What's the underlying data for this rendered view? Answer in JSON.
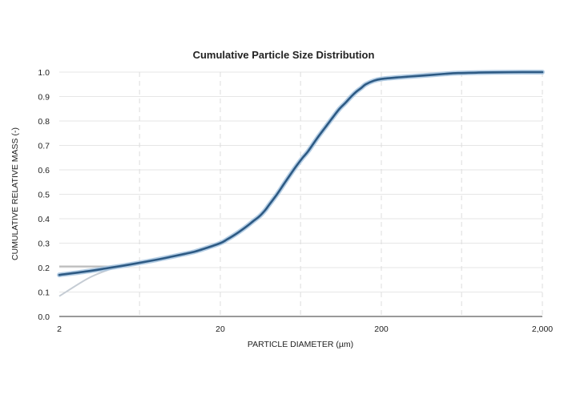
{
  "chart_data": {
    "type": "line",
    "title": "Cumulative Particle Size Distribution",
    "xlabel": "PARTICLE DIAMETER (µm)",
    "ylabel": "CUMULATIVE RELATIVE MASS (-)",
    "x_scale": "log",
    "xlim": [
      2,
      2000
    ],
    "ylim": [
      0,
      1.0
    ],
    "x_ticks": [
      2,
      20,
      200,
      2000
    ],
    "x_tick_labels": [
      "2",
      "20",
      "200",
      "2,000"
    ],
    "x_minor_gridlines": [
      6.3,
      63,
      630
    ],
    "y_ticks": [
      0.0,
      0.1,
      0.2,
      0.3,
      0.4,
      0.5,
      0.6,
      0.7,
      0.8,
      0.9,
      1.0
    ],
    "y_tick_labels": [
      "0.0",
      "0.1",
      "0.2",
      "0.3",
      "0.4",
      "0.5",
      "0.6",
      "0.7",
      "0.8",
      "0.9",
      "1.0"
    ],
    "grid": true,
    "colors": {
      "main": "#2d5a84",
      "band": "#a8c6e0",
      "flat_extrapolation": "#bbbbbb",
      "sloped_extrapolation": "#c5ccd4"
    },
    "series": [
      {
        "role": "main",
        "x": [
          2,
          3,
          4,
          5,
          6,
          8,
          10,
          12,
          14,
          16,
          20,
          22,
          24,
          26,
          28,
          30,
          32,
          35,
          38,
          40,
          45,
          50,
          55,
          60,
          65,
          70,
          80,
          90,
          100,
          110,
          120,
          130,
          140,
          150,
          160,
          180,
          200,
          250,
          300,
          400,
          500,
          600,
          800,
          1000,
          1500,
          2000
        ],
        "y": [
          0.17,
          0.185,
          0.198,
          0.208,
          0.217,
          0.232,
          0.245,
          0.256,
          0.266,
          0.278,
          0.3,
          0.315,
          0.33,
          0.345,
          0.36,
          0.375,
          0.39,
          0.41,
          0.435,
          0.455,
          0.5,
          0.545,
          0.585,
          0.62,
          0.65,
          0.675,
          0.73,
          0.775,
          0.815,
          0.85,
          0.875,
          0.9,
          0.92,
          0.935,
          0.95,
          0.965,
          0.972,
          0.978,
          0.982,
          0.988,
          0.993,
          0.996,
          0.998,
          0.999,
          1.0,
          1.0
        ]
      },
      {
        "role": "flat_extrapolation",
        "x": [
          2,
          4.5
        ],
        "y": [
          0.205,
          0.205
        ]
      },
      {
        "role": "sloped_extrapolation",
        "x": [
          2,
          3,
          4,
          5
        ],
        "y": [
          0.083,
          0.155,
          0.19,
          0.21
        ]
      }
    ]
  }
}
